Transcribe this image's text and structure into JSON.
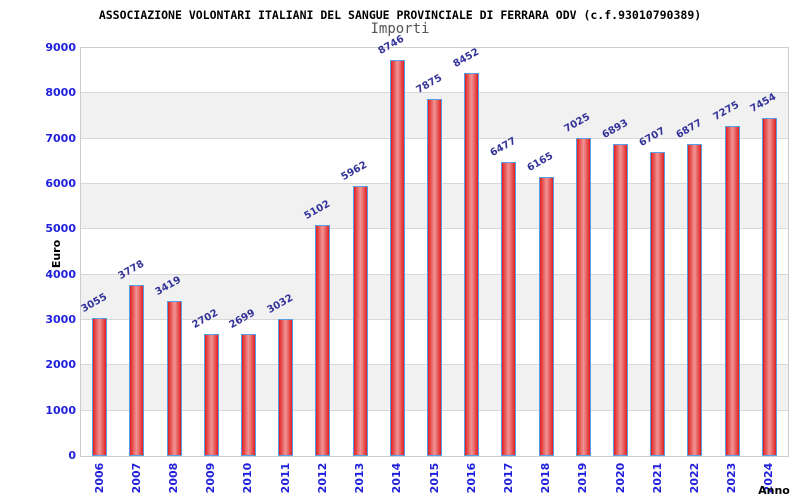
{
  "chart_data": {
    "type": "bar",
    "title": "ASSOCIAZIONE VOLONTARI ITALIANI DEL SANGUE PROVINCIALE DI FERRARA ODV (c.f.93010790389)",
    "subtitle": "Importi",
    "xlabel": "Anno",
    "ylabel": "Euro",
    "categories": [
      "2006",
      "2007",
      "2008",
      "2009",
      "2010",
      "2011",
      "2012",
      "2013",
      "2014",
      "2015",
      "2016",
      "2017",
      "2018",
      "2019",
      "2020",
      "2021",
      "2022",
      "2023",
      "2024"
    ],
    "values": [
      3055,
      3778,
      3419,
      2702,
      2699,
      3032,
      5102,
      5962,
      8746,
      7875,
      8452,
      6477,
      6165,
      7025,
      6893,
      6707,
      6877,
      7275,
      7454
    ],
    "ylim": [
      0,
      9000
    ],
    "ytick_step": 1000,
    "grid": "horizontal gridlines with alternating background bands",
    "legend": "none",
    "value_labels": "above each bar, rotated",
    "x_tick_rotation": -90
  },
  "colors": {
    "title": "#000000",
    "subtitle": "#555555",
    "axis_title": "#000000",
    "axis_tick_label": "#2020dd",
    "value_label": "#333399",
    "bar_edge": "#e01f1f",
    "bar_inner": "#e85555",
    "bar_mid": "#f09595",
    "bar_border": "#55a0e6",
    "band_alt": "#f1f1f1",
    "band_main": "#ffffff",
    "gridline": "#d8d8d8",
    "plot_border": "#cccccc",
    "background": "#ffffff"
  }
}
